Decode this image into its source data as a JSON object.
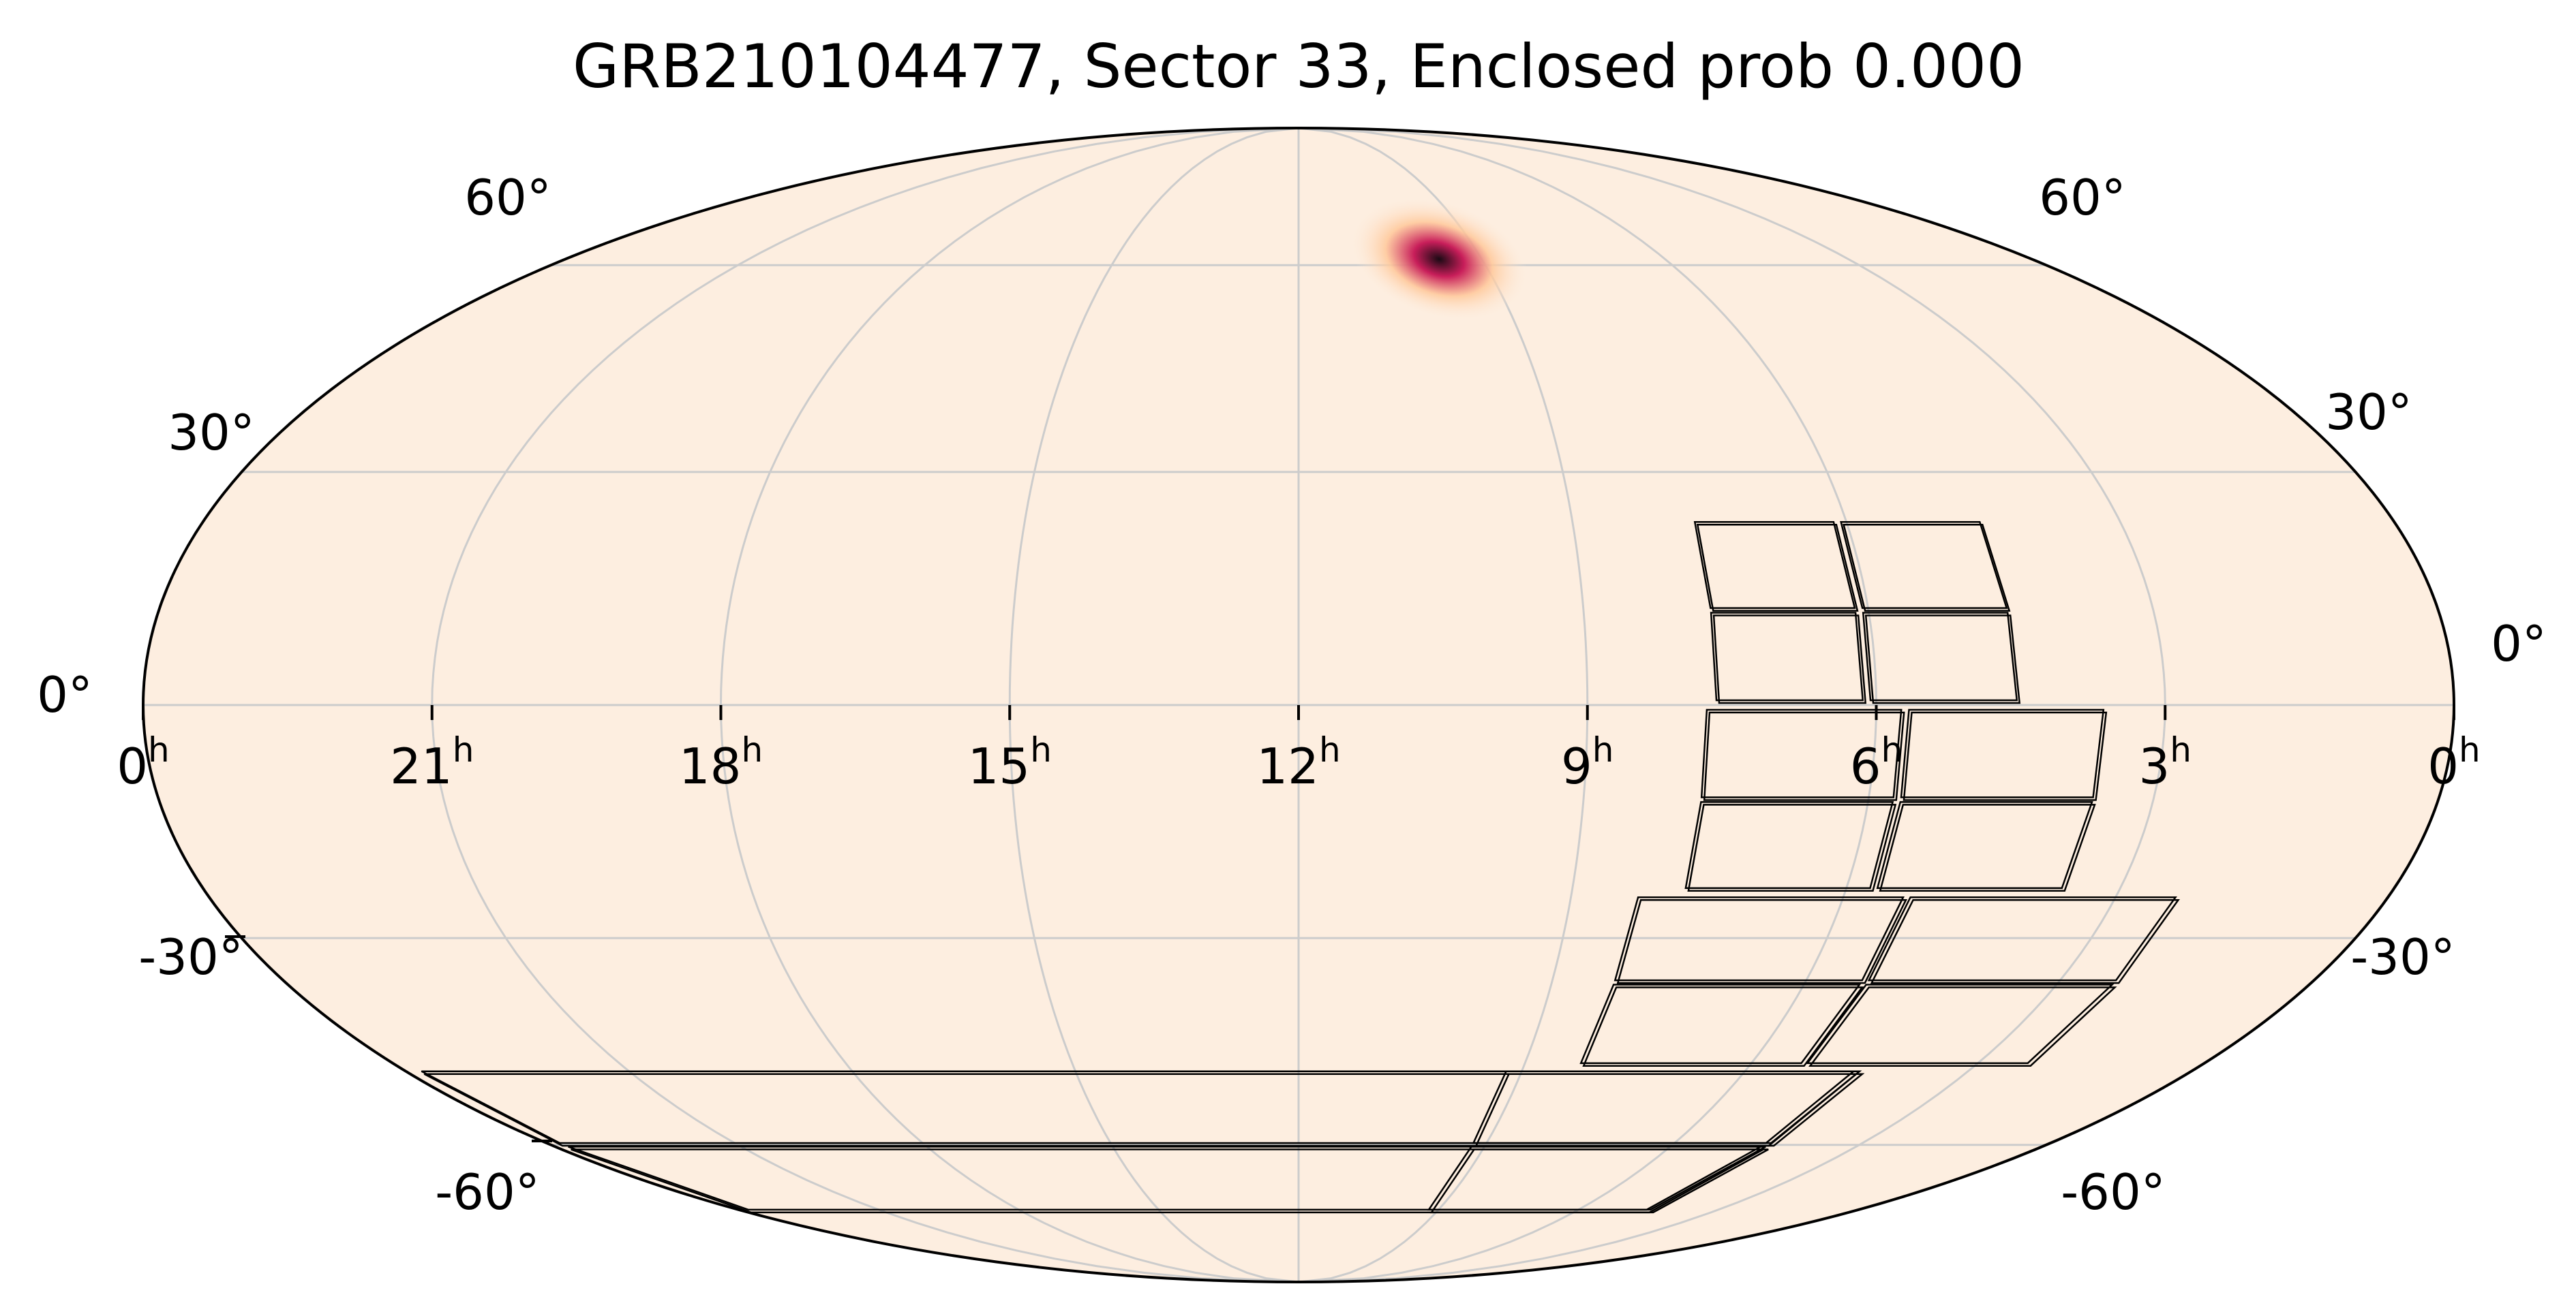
{
  "title": "GRB210104477, Sector 33, Enclosed prob 0.000",
  "colors": {
    "background": "#fdeee0",
    "grid": "#cccccc",
    "outline": "#000000",
    "tiles": "#000000",
    "hotspot_core": "#1a0a14",
    "hotspot_mid": "#c81e5a",
    "hotspot_outer": "#ffc89a"
  },
  "projection": "mollweide",
  "ra_ticks": [
    {
      "label": "0",
      "sup": "h",
      "ra_hours": 0,
      "side": "left"
    },
    {
      "label": "21",
      "sup": "h",
      "ra_hours": 21
    },
    {
      "label": "18",
      "sup": "h",
      "ra_hours": 18
    },
    {
      "label": "15",
      "sup": "h",
      "ra_hours": 15
    },
    {
      "label": "12",
      "sup": "h",
      "ra_hours": 12
    },
    {
      "label": "9",
      "sup": "h",
      "ra_hours": 9
    },
    {
      "label": "6",
      "sup": "h",
      "ra_hours": 6
    },
    {
      "label": "3",
      "sup": "h",
      "ra_hours": 3
    },
    {
      "label": "0",
      "sup": "h",
      "ra_hours": 0,
      "side": "right"
    }
  ],
  "dec_ticks_left": [
    "60°",
    "30°",
    "0°",
    "-30°",
    "-60°"
  ],
  "dec_ticks_right": [
    "60°",
    "30°",
    "0°",
    "-30°",
    "-60°"
  ],
  "dec_values": [
    60,
    30,
    0,
    -30,
    -60
  ],
  "hotspot": {
    "ra_hours": 9.7,
    "dec": 61
  },
  "sector": {
    "camera_dec_bands": [
      [
        0,
        24
      ],
      [
        -24,
        0
      ],
      [
        -48,
        -24
      ],
      [
        -72,
        -48
      ]
    ],
    "camera_ra_centers": [
      6.1,
      5.7,
      5.3,
      4.5
    ],
    "camera_widths_hours": [
      3.2,
      4.2,
      6.0,
      9.5
    ]
  }
}
